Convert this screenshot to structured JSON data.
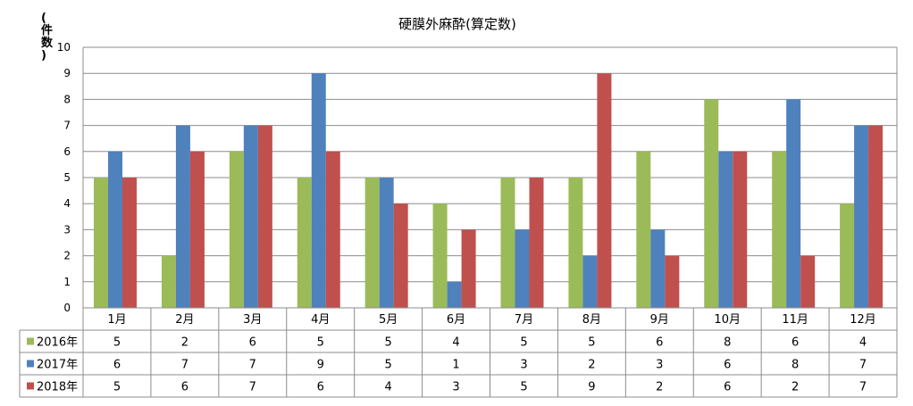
{
  "chart_data": {
    "type": "bar",
    "title": "硬膜外麻酔(算定数)",
    "ylabel": "(件数)",
    "ylim": [
      0,
      10
    ],
    "yticks": [
      0,
      1,
      2,
      3,
      4,
      5,
      6,
      7,
      8,
      9,
      10
    ],
    "grid": true,
    "legend": "data-table-left",
    "categories": [
      "1月",
      "2月",
      "3月",
      "4月",
      "5月",
      "6月",
      "7月",
      "8月",
      "9月",
      "10月",
      "11月",
      "12月"
    ],
    "series": [
      {
        "name": "2016年",
        "color": "#9BBB59",
        "values": [
          5,
          2,
          6,
          5,
          5,
          4,
          5,
          5,
          6,
          8,
          6,
          4
        ]
      },
      {
        "name": "2017年",
        "color": "#4F81BD",
        "values": [
          6,
          7,
          7,
          9,
          5,
          1,
          3,
          2,
          3,
          6,
          8,
          7
        ]
      },
      {
        "name": "2018年",
        "color": "#C0504D",
        "values": [
          5,
          6,
          7,
          6,
          4,
          3,
          5,
          9,
          2,
          6,
          2,
          7
        ]
      }
    ]
  }
}
